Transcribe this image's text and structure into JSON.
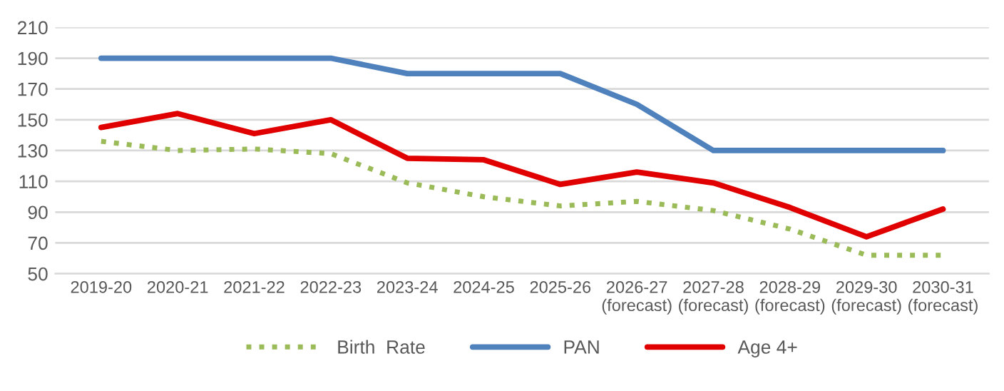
{
  "chart_data": {
    "type": "line",
    "categories": [
      "2019-20",
      "2020-21",
      "2021-22",
      "2022-23",
      "2023-24",
      "2024-25",
      "2025-26",
      "2026-27\n(forecast)",
      "2027-28\n(forecast)",
      "2028-29\n(forecast)",
      "2029-30\n(forecast)",
      "2030-31\n(forecast)"
    ],
    "series": [
      {
        "name": "Birth  Rate",
        "color": "#9bbb59",
        "line_style": "dotted",
        "values": [
          136,
          130,
          131,
          128,
          109,
          100,
          94,
          97,
          91,
          79,
          62,
          62
        ]
      },
      {
        "name": "PAN",
        "color": "#4f81bd",
        "line_style": "solid",
        "values": [
          190,
          190,
          190,
          190,
          180,
          180,
          180,
          160,
          130,
          130,
          130,
          130
        ]
      },
      {
        "name": "Age 4+",
        "color": "#e00000",
        "line_style": "solid",
        "values": [
          145,
          154,
          141,
          150,
          125,
          124,
          108,
          116,
          109,
          93,
          74,
          92
        ]
      }
    ],
    "ylim": [
      50,
      210
    ],
    "yticks": [
      50,
      70,
      90,
      110,
      130,
      150,
      170,
      190,
      210
    ],
    "grid": "y",
    "legend": "bottom",
    "marker": "none"
  }
}
